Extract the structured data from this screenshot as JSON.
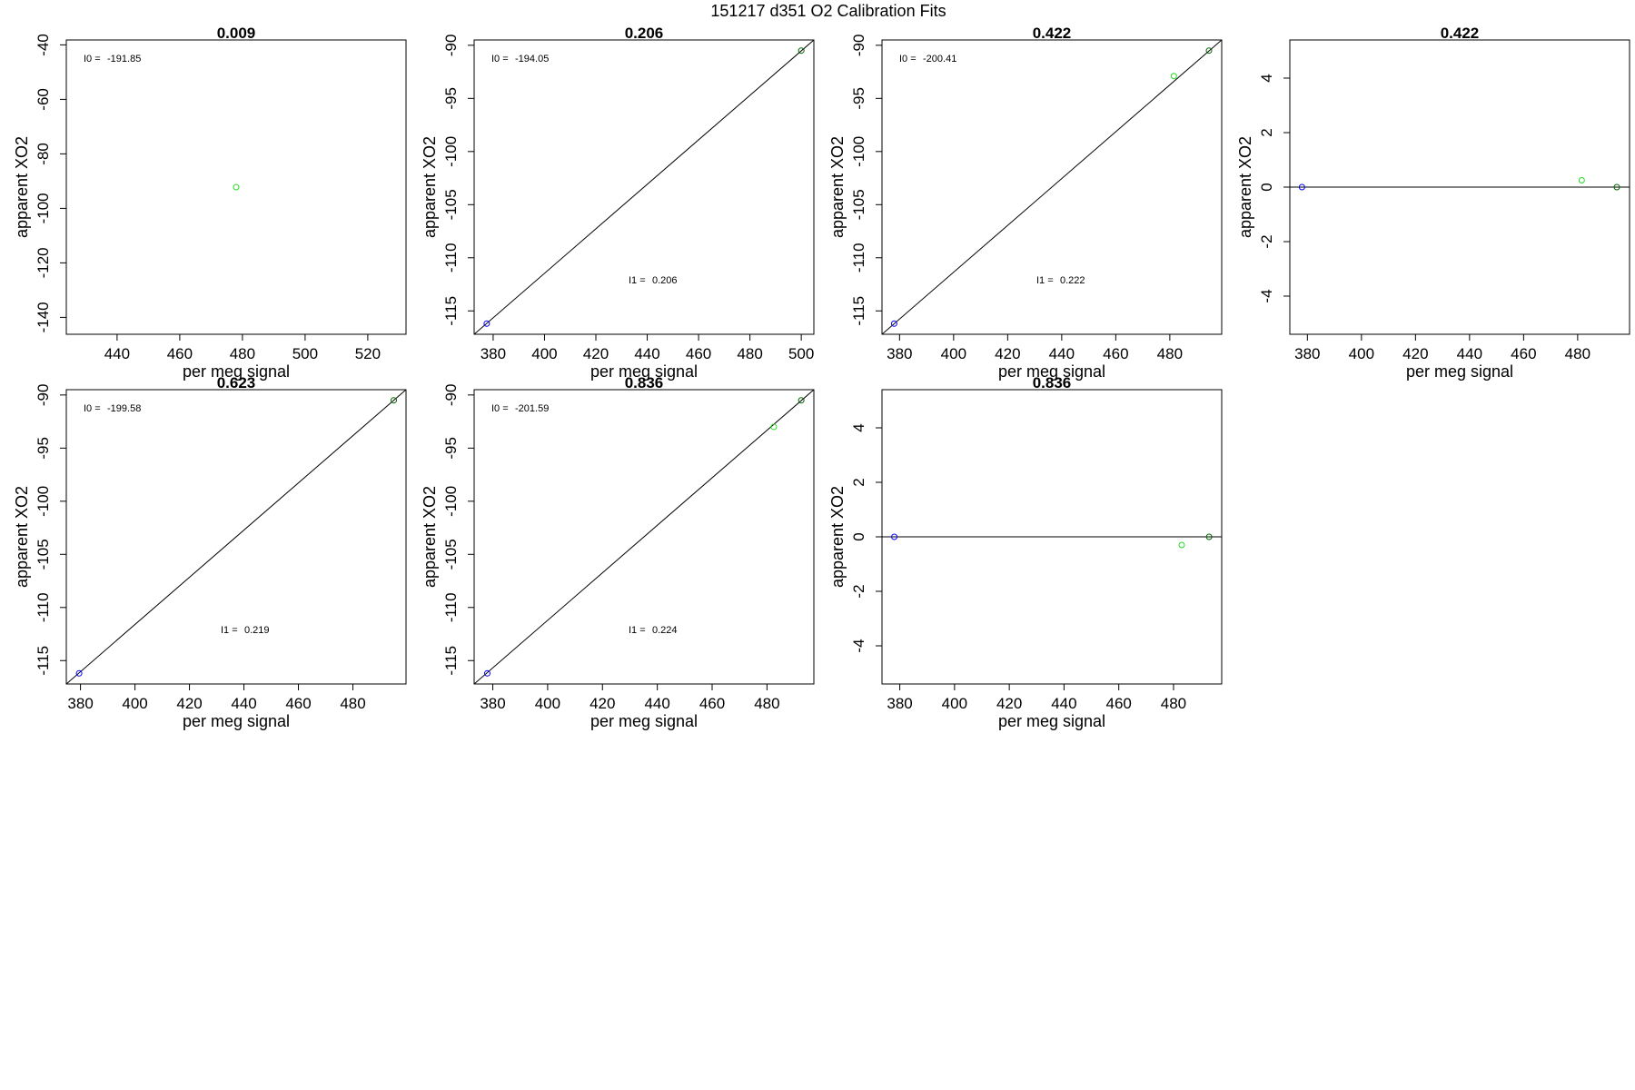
{
  "figure_title": "151217   d351   O2 Calibration Fits",
  "colors": {
    "axis": "#000000",
    "fit_line": "#000000",
    "low_point": "#0000ff",
    "mid_point": "#00dd00",
    "high_point": "#006400"
  },
  "chart_data": [
    {
      "type": "scatter",
      "title": "0.009",
      "xlabel": "per meg signal",
      "ylabel": "apparent XO2",
      "xlim": [
        423.8,
        532.2
      ],
      "ylim": [
        -146.2,
        -38.2
      ],
      "xticks": [
        440,
        460,
        480,
        500,
        520
      ],
      "yticks": [
        -40,
        -60,
        -80,
        -100,
        -120,
        -140
      ],
      "annotations": [
        {
          "key": "I0",
          "label": "I0 = ",
          "value": "-191.85"
        }
      ],
      "points": [
        {
          "x": 478,
          "y": -92.2,
          "color": "#22dd22"
        }
      ],
      "fit_line": null
    },
    {
      "type": "scatter",
      "title": "0.206",
      "xlabel": "per meg signal",
      "ylabel": "apparent XO2",
      "xlim": [
        372.6,
        504.9
      ],
      "ylim": [
        -117.2,
        -89.5
      ],
      "xticks": [
        380,
        400,
        420,
        440,
        460,
        480,
        500
      ],
      "yticks": [
        -90,
        -95,
        -100,
        -105,
        -110,
        -115
      ],
      "annotations": [
        {
          "key": "I0",
          "label": "I0 = ",
          "value": "-194.05"
        },
        {
          "key": "I1",
          "label": "I1 = ",
          "value": "0.206"
        }
      ],
      "points": [
        {
          "x": 377.5,
          "y": -116.2,
          "color": "#0000ff"
        },
        {
          "x": 500,
          "y": -90.5,
          "color": "#006400"
        }
      ],
      "fit_line": {
        "x1": 372.6,
        "y1": -117.2,
        "x2": 504.9,
        "y2": -89.5
      }
    },
    {
      "type": "scatter",
      "title": "0.422",
      "xlabel": "per meg signal",
      "ylabel": "apparent XO2",
      "xlim": [
        373.5,
        499.2
      ],
      "ylim": [
        -117.2,
        -89.5
      ],
      "xticks": [
        380,
        400,
        420,
        440,
        460,
        480
      ],
      "yticks": [
        -90,
        -95,
        -100,
        -105,
        -110,
        -115
      ],
      "annotations": [
        {
          "key": "I0",
          "label": "I0 = ",
          "value": "-200.41"
        },
        {
          "key": "I1",
          "label": "I1 = ",
          "value": "0.222"
        }
      ],
      "points": [
        {
          "x": 378,
          "y": -116.2,
          "color": "#0000ff"
        },
        {
          "x": 481.5,
          "y": -92.9,
          "color": "#22dd22"
        },
        {
          "x": 494.5,
          "y": -90.5,
          "color": "#006400"
        }
      ],
      "fit_line": {
        "x1": 373.5,
        "y1": -117.2,
        "x2": 499.2,
        "y2": -89.5
      }
    },
    {
      "type": "scatter",
      "title": "0.422",
      "xlabel": "per meg signal",
      "ylabel": "apparent XO2",
      "xlim": [
        373.5,
        499.2
      ],
      "ylim": [
        -5.4,
        5.4
      ],
      "xticks": [
        380,
        400,
        420,
        440,
        460,
        480
      ],
      "yticks": [
        4,
        2,
        0,
        -2,
        -4
      ],
      "annotations": [],
      "points": [
        {
          "x": 378,
          "y": 0,
          "color": "#0000ff"
        },
        {
          "x": 481.5,
          "y": 0.25,
          "color": "#22dd22"
        },
        {
          "x": 494.5,
          "y": 0,
          "color": "#006400"
        }
      ],
      "fit_line": {
        "x1": 373.5,
        "y1": 0,
        "x2": 499.2,
        "y2": 0
      }
    },
    {
      "type": "scatter",
      "title": "0.623",
      "xlabel": "per meg signal",
      "ylabel": "apparent XO2",
      "xlim": [
        374.8,
        499.5
      ],
      "ylim": [
        -117.2,
        -89.5
      ],
      "xticks": [
        380,
        400,
        420,
        440,
        460,
        480
      ],
      "yticks": [
        -90,
        -95,
        -100,
        -105,
        -110,
        -115
      ],
      "annotations": [
        {
          "key": "I0",
          "label": "I0 = ",
          "value": "-199.58"
        },
        {
          "key": "I1",
          "label": "I1 = ",
          "value": "0.219"
        }
      ],
      "points": [
        {
          "x": 379.5,
          "y": -116.2,
          "color": "#0000ff"
        },
        {
          "x": 495,
          "y": -90.5,
          "color": "#006400"
        }
      ],
      "fit_line": {
        "x1": 374.8,
        "y1": -117.2,
        "x2": 499.5,
        "y2": -89.5
      }
    },
    {
      "type": "scatter",
      "title": "0.836",
      "xlabel": "per meg signal",
      "ylabel": "apparent XO2",
      "xlim": [
        373.2,
        497.1
      ],
      "ylim": [
        -117.2,
        -89.5
      ],
      "xticks": [
        380,
        400,
        420,
        440,
        460,
        480
      ],
      "yticks": [
        -90,
        -95,
        -100,
        -105,
        -110,
        -115
      ],
      "annotations": [
        {
          "key": "I0",
          "label": "I0 = ",
          "value": "-201.59"
        },
        {
          "key": "I1",
          "label": "I1 = ",
          "value": "0.224"
        }
      ],
      "points": [
        {
          "x": 378,
          "y": -116.2,
          "color": "#0000ff"
        },
        {
          "x": 482.5,
          "y": -93.0,
          "color": "#22dd22"
        },
        {
          "x": 492.5,
          "y": -90.5,
          "color": "#006400"
        }
      ],
      "fit_line": {
        "x1": 373.2,
        "y1": -117.2,
        "x2": 497.1,
        "y2": -89.5
      }
    },
    {
      "type": "scatter",
      "title": "0.836",
      "xlabel": "per meg signal",
      "ylabel": "apparent XO2",
      "xlim": [
        373.5,
        497.6
      ],
      "ylim": [
        -5.4,
        5.4
      ],
      "xticks": [
        380,
        400,
        420,
        440,
        460,
        480
      ],
      "yticks": [
        4,
        2,
        0,
        -2,
        -4
      ],
      "annotations": [],
      "points": [
        {
          "x": 378,
          "y": 0,
          "color": "#0000ff"
        },
        {
          "x": 483,
          "y": -0.3,
          "color": "#22dd22"
        },
        {
          "x": 493,
          "y": 0,
          "color": "#006400"
        }
      ],
      "fit_line": {
        "x1": 373.5,
        "y1": 0,
        "x2": 497.6,
        "y2": 0
      }
    }
  ]
}
